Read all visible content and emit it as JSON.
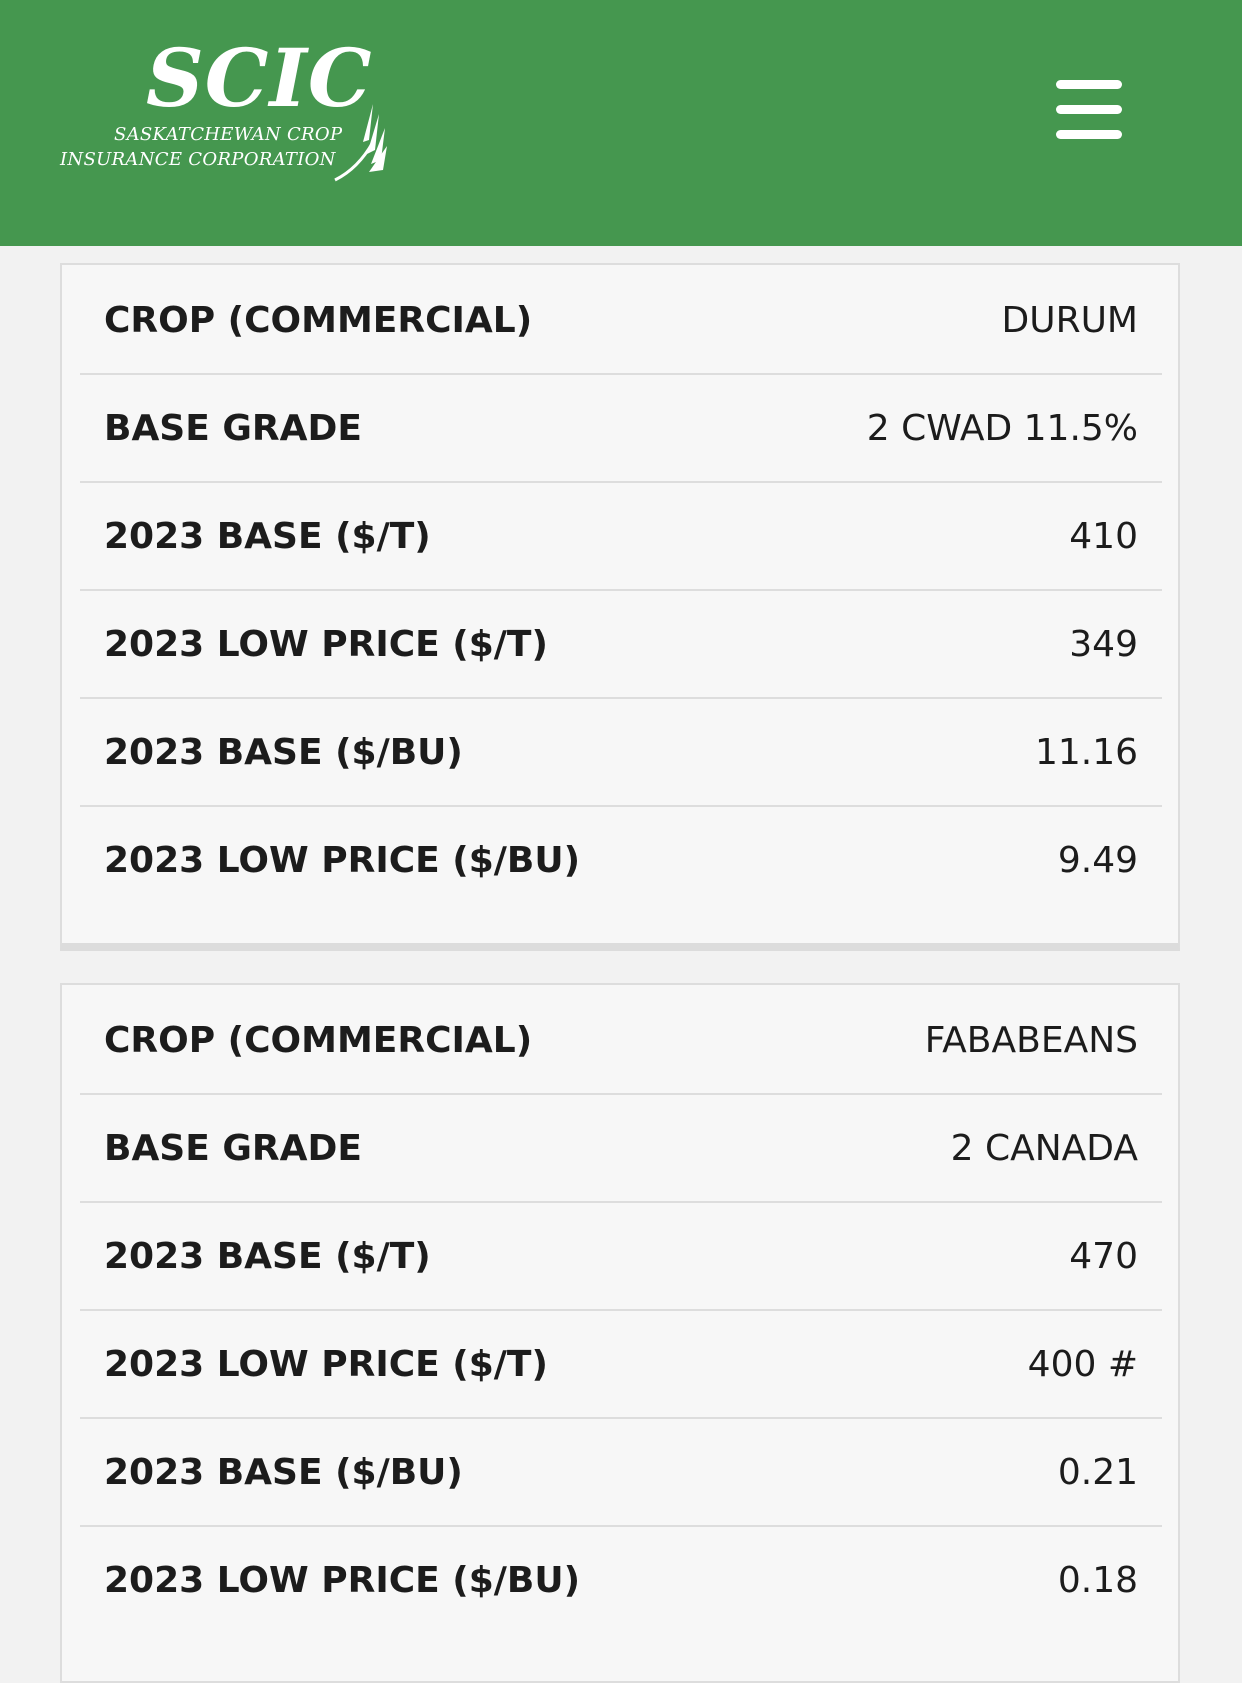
{
  "header": {
    "logo": {
      "mark": "SCIC",
      "line1": "SASKATCHEWAN CROP",
      "line2": "INSURANCE CORPORATION"
    },
    "menu_icon": "hamburger-menu-icon",
    "background_color": "#45974f"
  },
  "cards": [
    {
      "rows": [
        {
          "label": "CROP (COMMERCIAL)",
          "value": "DURUM"
        },
        {
          "label": "BASE GRADE",
          "value": "2 CWAD 11.5%"
        },
        {
          "label": "2023 BASE ($/T)",
          "value": "410"
        },
        {
          "label": "2023 LOW PRICE ($/T)",
          "value": "349"
        },
        {
          "label": "2023 BASE ($/BU)",
          "value": "11.16"
        },
        {
          "label": "2023 LOW PRICE ($/BU)",
          "value": "9.49"
        }
      ]
    },
    {
      "rows": [
        {
          "label": "CROP (COMMERCIAL)",
          "value": "FABABEANS"
        },
        {
          "label": "BASE GRADE",
          "value": "2 CANADA"
        },
        {
          "label": "2023 BASE ($/T)",
          "value": "470"
        },
        {
          "label": "2023 LOW PRICE ($/T)",
          "value": "400 #"
        },
        {
          "label": "2023 BASE ($/BU)",
          "value": "0.21"
        },
        {
          "label": "2023 LOW PRICE ($/BU)",
          "value": "0.18"
        }
      ]
    }
  ]
}
